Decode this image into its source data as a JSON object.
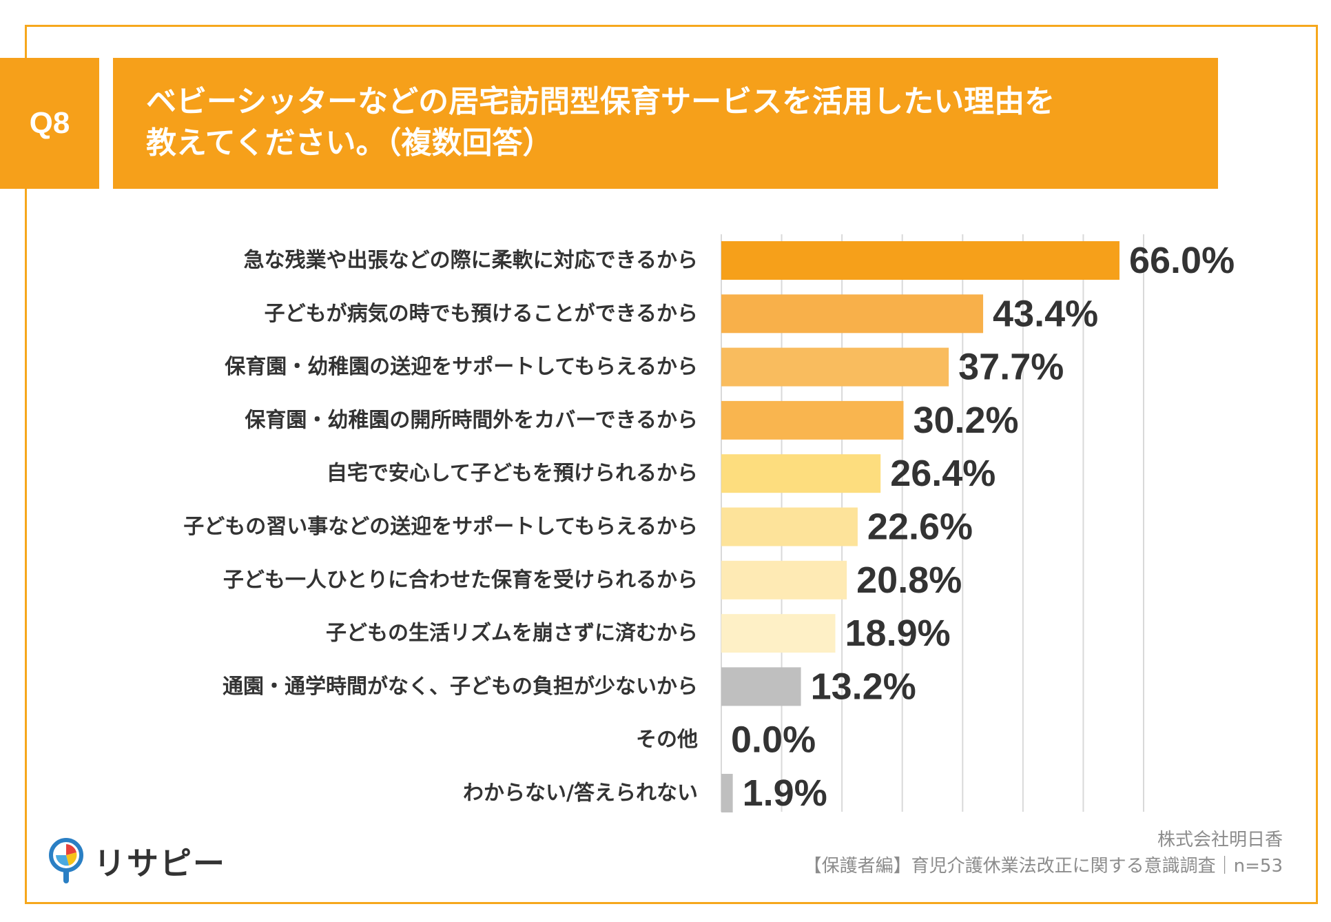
{
  "question": {
    "badge": "Q8",
    "line1": "ベビーシッターなどの居宅訪問型保育サービスを活用したい理由を",
    "line2": "教えてください。（複数回答）"
  },
  "chart_data": {
    "type": "bar",
    "orientation": "horizontal",
    "title": "ベビーシッターなどの居宅訪問型保育サービスを活用したい理由を教えてください。（複数回答）",
    "unit": "%",
    "xlim": [
      0,
      70
    ],
    "grid": true,
    "categories": [
      "急な残業や出張などの際に柔軟に対応できるから",
      "子どもが病気の時でも預けることができるから",
      "保育園・幼稚園の送迎をサポートしてもらえるから",
      "保育園・幼稚園の開所時間外をカバーできるから",
      "自宅で安心して子どもを預けられるから",
      "子どもの習い事などの送迎をサポートしてもらえるから",
      "子ども一人ひとりに合わせた保育を受けられるから",
      "子どもの生活リズムを崩さずに済むから",
      "通園・通学時間がなく、子どもの負担が少ないから",
      "その他",
      "わからない/答えられない"
    ],
    "values": [
      66.0,
      43.4,
      37.7,
      30.2,
      26.4,
      22.6,
      20.8,
      18.9,
      13.2,
      0.0,
      1.9
    ],
    "value_labels": [
      "66.0%",
      "43.4%",
      "37.7%",
      "30.2%",
      "26.4%",
      "22.6%",
      "20.8%",
      "18.9%",
      "13.2%",
      "0.0%",
      "1.9%"
    ],
    "colors": [
      "#f6a01a",
      "#f8b04a",
      "#f9bc5e",
      "#f9b54f",
      "#fddd7e",
      "#fde39a",
      "#feeab4",
      "#fef0c6",
      "#bfbfbf",
      "#bfbfbf",
      "#bfbfbf"
    ]
  },
  "logo": {
    "name": "リサピー",
    "icon": "pin-logo-icon"
  },
  "source": {
    "company": "株式会社明日香",
    "survey": "【保護者編】育児介護休業法改正に関する意識調査｜n=53"
  },
  "colors": {
    "accent": "#f6a01a",
    "frame": "#f6a71c",
    "text": "#333333",
    "muted": "#8c8c8c",
    "grid": "#d9d9d9"
  }
}
